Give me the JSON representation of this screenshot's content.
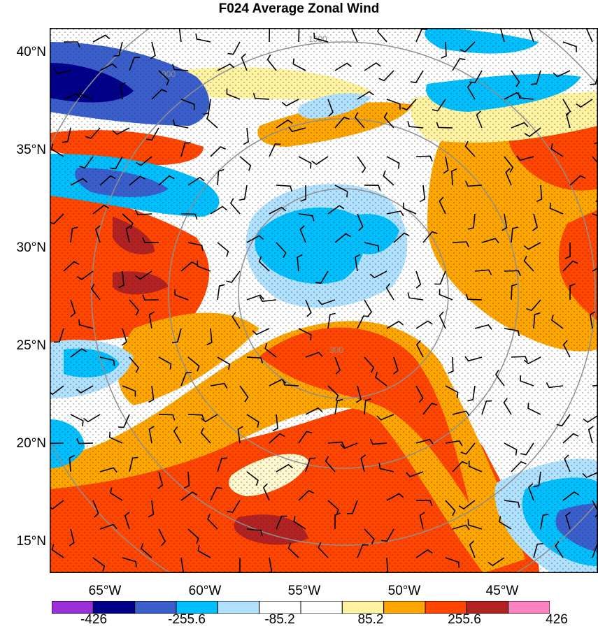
{
  "title": "F024 Average Zonal Wind",
  "map": {
    "lat_labels": [
      "40°N",
      "35°N",
      "30°N",
      "25°N",
      "20°N",
      "15°N"
    ],
    "lon_labels": [
      "65°W",
      "60°W",
      "55°W",
      "50°W",
      "45°W"
    ],
    "range_ring_labels": [
      "1500",
      "900",
      "300"
    ],
    "overlays": [
      "stippling",
      "wind-barbs",
      "range-rings"
    ]
  },
  "colorbar": {
    "labels": [
      "-426",
      "-255.6",
      "-85.2",
      "85.2",
      "255.6",
      "426"
    ],
    "colors": [
      "#9b30d9",
      "#00008b",
      "#3a5fcd",
      "#00bfff",
      "#b0e2ff",
      "#ffffff",
      "#ffffff",
      "#fff2a0",
      "#ffa500",
      "#ff4500",
      "#b22222",
      "#ff82c0"
    ]
  }
}
